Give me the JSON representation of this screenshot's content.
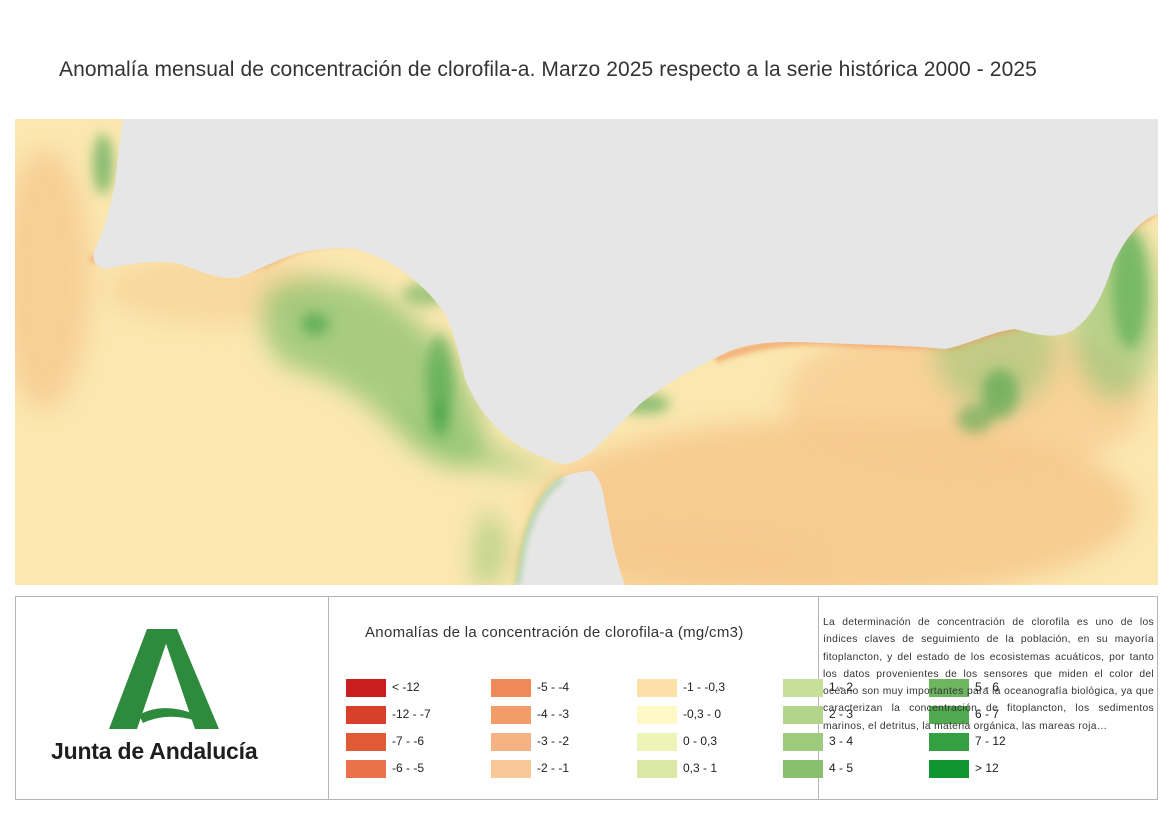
{
  "title": "Anomalía mensual de concentración de clorofila-a. Marzo 2025 respecto a la serie histórica 2000 - 2025",
  "logo": {
    "text": "Junta de Andalucía",
    "color": "#2e8b3e"
  },
  "legend": {
    "title": "Anomalías de la concentración de clorofila-a (mg/cm3)",
    "items": [
      {
        "label": "< -12",
        "color": "#c81e1e"
      },
      {
        "label": "-12 - -7",
        "color": "#d7402b"
      },
      {
        "label": "-7 - -6",
        "color": "#e05a36"
      },
      {
        "label": "-6 - -5",
        "color": "#e9724a"
      },
      {
        "label": "-5 - -4",
        "color": "#ef8a58"
      },
      {
        "label": "-4 - -3",
        "color": "#f29c6a"
      },
      {
        "label": "-3 - -2",
        "color": "#f6b283"
      },
      {
        "label": "-2 - -1",
        "color": "#f9c897"
      },
      {
        "label": "-1 - -0,3",
        "color": "#fde0a8"
      },
      {
        "label": "-0,3 - 0",
        "color": "#fff9c8"
      },
      {
        "label": "0 - 0,3",
        "color": "#eef4b6"
      },
      {
        "label": "0,3 - 1",
        "color": "#dbe8a6"
      },
      {
        "label": "1 - 2",
        "color": "#c6e09a"
      },
      {
        "label": "2 - 3",
        "color": "#b2d58b"
      },
      {
        "label": "3 - 4",
        "color": "#9dcb7c"
      },
      {
        "label": "4 - 5",
        "color": "#88c06e"
      },
      {
        "label": "5 - 6",
        "color": "#6db660"
      },
      {
        "label": "6 - 7",
        "color": "#52aa50"
      },
      {
        "label": "7 - 12",
        "color": "#35a040"
      },
      {
        "label": "> 12",
        "color": "#109631"
      }
    ]
  },
  "description": "La determinación de concentración de clorofila es uno de los índices claves de seguimiento de la población, en su mayoría fitoplancton, y del estado de los ecosistemas acuáticos, por tanto los datos provenientes de los sensores que miden el color del océano son muy importantes para la oceanografía biológica, ya que caracterizan la concentración de fitoplancton, los sedimentos marinos, el detritus, la materia orgánica, las mareas roja…",
  "map_colors": {
    "land": "#e6e6e6",
    "ocean_base": "#fbe8b0",
    "ocean_warm": "#f6c98e",
    "coast_negative": "#ef9a62",
    "bloom": "#8cc36f",
    "bloom_strong": "#3a9f42"
  }
}
